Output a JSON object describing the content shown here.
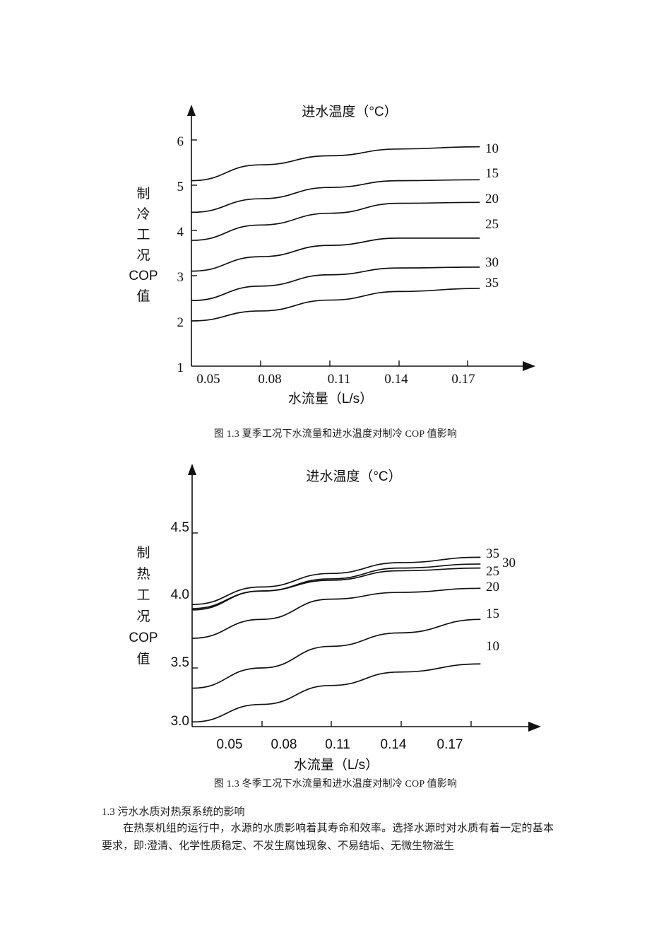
{
  "chart_data": [
    {
      "type": "line",
      "title": "进水温度（°C）",
      "xlabel": "水流量（L/s）",
      "ylabel": "制冷工况COP值",
      "caption": "图 1.3  夏季工况下水流量和进水温度对制冷 COP 值影响",
      "x_ticks": [
        "0.05",
        "0.08",
        "0.11",
        "0.14",
        "0.17"
      ],
      "y_ticks": [
        "1",
        "2",
        "3",
        "4",
        "5",
        "6"
      ],
      "xlim": [
        0.05,
        0.175
      ],
      "ylim": [
        1,
        6
      ],
      "legend_position": "right line-end labels",
      "grid": false,
      "x": [
        0.05,
        0.08,
        0.11,
        0.14,
        0.175
      ],
      "series": [
        {
          "name": "10",
          "values": [
            5.1,
            5.45,
            5.65,
            5.8,
            5.85
          ]
        },
        {
          "name": "15",
          "values": [
            4.4,
            4.7,
            4.95,
            5.1,
            5.12
          ]
        },
        {
          "name": "20",
          "values": [
            3.78,
            4.12,
            4.38,
            4.6,
            4.62
          ]
        },
        {
          "name": "25",
          "values": [
            3.1,
            3.42,
            3.67,
            3.83,
            3.83
          ]
        },
        {
          "name": "30",
          "values": [
            2.45,
            2.77,
            3.02,
            3.17,
            3.19
          ]
        },
        {
          "name": "35",
          "values": [
            2.0,
            2.22,
            2.46,
            2.65,
            2.72
          ]
        }
      ]
    },
    {
      "type": "line",
      "title": "进水温度（°C）",
      "xlabel": "水流量（L/s）",
      "ylabel": "制热工况COP值",
      "caption": "图 1.3  冬季工况下水流量和进水温度对制冷 COP 值影响",
      "x_ticks": [
        "0.05",
        "0.08",
        "0.11",
        "0.14",
        "0.17"
      ],
      "y_ticks": [
        "3.0",
        "3.5",
        "4.0",
        "4.5"
      ],
      "xlim": [
        0.05,
        0.185
      ],
      "ylim": [
        3.0,
        4.7
      ],
      "legend_position": "right line-end labels",
      "grid": false,
      "x": [
        0.05,
        0.08,
        0.11,
        0.14,
        0.175
      ],
      "series": [
        {
          "name": "35",
          "values": [
            3.97,
            4.1,
            4.2,
            4.28,
            4.32
          ]
        },
        {
          "name": "30",
          "values": [
            3.94,
            4.07,
            4.16,
            4.24,
            4.27
          ]
        },
        {
          "name": "25",
          "values": [
            3.93,
            4.07,
            4.15,
            4.22,
            4.24
          ]
        },
        {
          "name": "20",
          "values": [
            3.72,
            3.86,
            4.01,
            4.06,
            4.09
          ]
        },
        {
          "name": "15",
          "values": [
            3.35,
            3.5,
            3.66,
            3.76,
            3.86
          ]
        },
        {
          "name": "10",
          "values": [
            3.1,
            3.23,
            3.37,
            3.47,
            3.53
          ]
        }
      ]
    }
  ],
  "document": {
    "figure1": {
      "title": "进水温度（°C）",
      "ylabel_chars": [
        "制",
        "冷",
        "工",
        "况",
        "COP",
        "值"
      ],
      "xlabel": "水流量（L/s）",
      "caption": "图 1.3  夏季工况下水流量和进水温度对制冷 COP 值影响"
    },
    "figure2": {
      "title": "进水温度（°C）",
      "ylabel_chars": [
        "制",
        "热",
        "工",
        "况",
        "COP",
        "值"
      ],
      "xlabel": "水流量（L/s）",
      "caption": "图 1.3  冬季工况下水流量和进水温度对制冷 COP 值影响"
    },
    "section_heading": "1.3 污水水质对热泵系统的影响",
    "paragraph": "在热泵机组的运行中，水源的水质影响着其寿命和效率。选择水源时对水质有着一定的基本要求，即:澄清、化学性质稳定、不发生腐蚀现象、不易结垢、无微生物滋生"
  }
}
